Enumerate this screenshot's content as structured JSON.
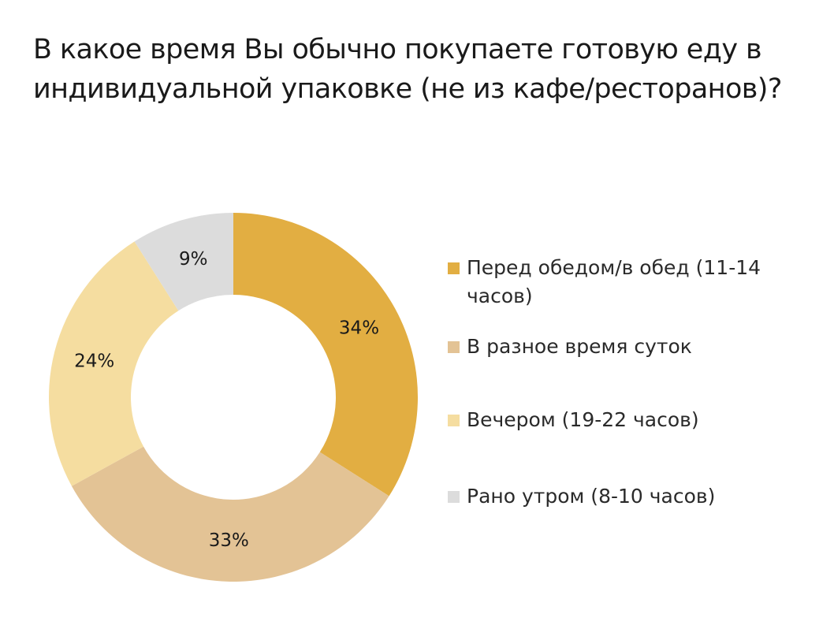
{
  "title": "В какое время Вы обычно покупаете готовую еду в индивидуальной упаковке (не из кафе/ресторанов)?",
  "chart_data": {
    "type": "pie",
    "donut": true,
    "title": "В какое время Вы обычно покупаете готовую еду в индивидуальной упаковке (не из кафе/ресторанов)?",
    "legend_position": "right",
    "slices": [
      {
        "label": "Перед обедом/в обед (11-14 часов)",
        "value": 34,
        "value_label": "34%",
        "color": "#E2AE42"
      },
      {
        "label": "В разное время суток",
        "value": 33,
        "value_label": "33%",
        "color": "#E3C395"
      },
      {
        "label": "Вечером (19-22 часов)",
        "value": 24,
        "value_label": "24%",
        "color": "#F5DDA0"
      },
      {
        "label": "Рано утром (8-10 часов)",
        "value": 9,
        "value_label": "9%",
        "color": "#DCDCDC"
      }
    ]
  }
}
